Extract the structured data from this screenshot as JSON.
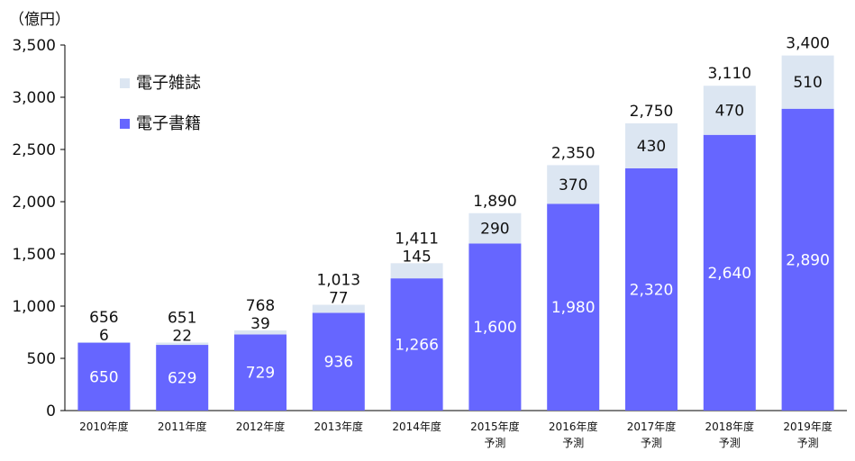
{
  "chart_data": {
    "type": "bar",
    "stacked": true,
    "unit_label": "（億円）",
    "categories": [
      [
        "2010年度"
      ],
      [
        "2011年度"
      ],
      [
        "2012年度"
      ],
      [
        "2013年度"
      ],
      [
        "2014年度"
      ],
      [
        "2015年度",
        "予測"
      ],
      [
        "2016年度",
        "予測"
      ],
      [
        "2017年度",
        "予測"
      ],
      [
        "2018年度",
        "予測"
      ],
      [
        "2019年度",
        "予測"
      ]
    ],
    "series": [
      {
        "name": "電子書籍",
        "color": "#6666ff",
        "values": [
          650,
          629,
          729,
          936,
          1266,
          1600,
          1980,
          2320,
          2640,
          2890
        ]
      },
      {
        "name": "電子雑誌",
        "color": "#dce6f2",
        "values": [
          6,
          22,
          39,
          77,
          145,
          290,
          370,
          430,
          470,
          510
        ]
      }
    ],
    "totals": [
      656,
      651,
      768,
      1013,
      1411,
      1890,
      2350,
      2750,
      3110,
      3400
    ],
    "ylim": [
      0,
      3500
    ],
    "yticks": [
      0,
      500,
      1000,
      1500,
      2000,
      2500,
      3000,
      3500
    ],
    "legend_position": "top-left",
    "legend_order": [
      1,
      0
    ],
    "grid": false
  }
}
